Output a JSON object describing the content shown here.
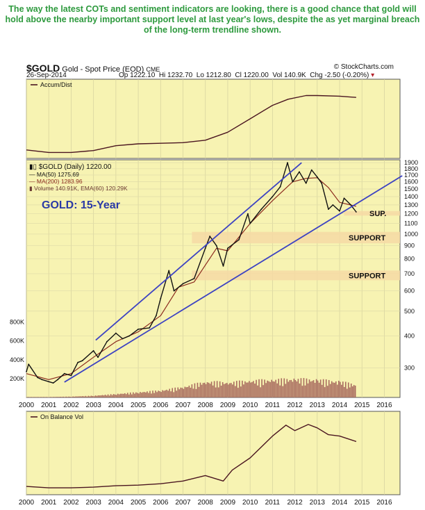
{
  "headline": "The way the latest COTs and sentiment indicators are looking, there is a good chance that gold will hold above the nearby important support level at last  year's lows, despite the as yet marginal breach of the long-term trendline shown.",
  "header": {
    "symbol": "$GOLD",
    "name": "Gold - Spot Price (EOD)",
    "exchange": "CME",
    "brand": "© StockCharts.com",
    "date": "26-Sep-2014",
    "open": "Op 1222.10",
    "high": "Hi 1232.70",
    "low": "Lo 1212.80",
    "close": "Cl 1220.00",
    "vol": "Vol 140.9K",
    "chg": "Chg -2.50 (-0.20%)"
  },
  "colors": {
    "panel_bg": "#f7f3b2",
    "price_line": "#111111",
    "indicator_line": "#4a1520",
    "ma200": "#8b2a1e",
    "volume": "#a86a5e",
    "trendline": "#3d43c2",
    "support_band": "#f6d9a5",
    "label_blue": "#2a3aa6",
    "headline": "#2e9a3e"
  },
  "chart_data": [
    {
      "type": "line",
      "panel": "top",
      "legend": [
        "Accum/Dist"
      ],
      "x": [
        2000.0,
        2001.0,
        2002.0,
        2003.0,
        2004.0,
        2005.0,
        2006.0,
        2007.0,
        2008.0,
        2009.0,
        2010.0,
        2011.0,
        2011.7,
        2012.5,
        2013.0,
        2014.0,
        2014.74
      ],
      "y": [
        0.07,
        0.03,
        0.03,
        0.06,
        0.14,
        0.17,
        0.18,
        0.19,
        0.23,
        0.36,
        0.58,
        0.8,
        0.9,
        0.96,
        0.96,
        0.95,
        0.93
      ]
    },
    {
      "type": "line",
      "panel": "main",
      "title": "$GOLD (Daily) 1220.00",
      "annotation": "GOLD: 15-Year",
      "legend": [
        {
          "name": "$GOLD (Daily) 1220.00"
        },
        {
          "name": "MA(50) 1275.69"
        },
        {
          "name": "MA(200) 1283.96"
        },
        {
          "name": "Volume 140.91K, EMA(60) 120.29K"
        }
      ],
      "y_scale": "log",
      "ylim": [
        230,
        1950
      ],
      "y_ticks": [
        300,
        400,
        500,
        600,
        700,
        800,
        900,
        1000,
        1100,
        1200,
        1300,
        1400,
        1500,
        1600,
        1700,
        1800,
        1900
      ],
      "x_ticks": [
        "2000",
        "2001",
        "2002",
        "2003",
        "2004",
        "2005",
        "2006",
        "2007",
        "2008",
        "2009",
        "2010",
        "2011",
        "2012",
        "2013",
        "2014",
        "2015",
        "2016"
      ],
      "series": [
        {
          "name": "$GOLD (Daily)",
          "x": [
            2000.0,
            2000.1,
            2000.5,
            2000.7,
            2001.0,
            2001.2,
            2001.4,
            2001.7,
            2002.0,
            2002.3,
            2002.5,
            2003.0,
            2003.2,
            2003.6,
            2004.0,
            2004.3,
            2004.6,
            2005.0,
            2005.5,
            2005.8,
            2006.0,
            2006.37,
            2006.6,
            2007.0,
            2007.5,
            2008.0,
            2008.2,
            2008.5,
            2008.8,
            2009.0,
            2009.5,
            2009.9,
            2010.0,
            2010.5,
            2011.0,
            2011.35,
            2011.67,
            2011.9,
            2012.2,
            2012.5,
            2012.75,
            2013.0,
            2013.2,
            2013.5,
            2013.7,
            2014.0,
            2014.2,
            2014.5,
            2014.74
          ],
          "y": [
            290,
            310,
            275,
            270,
            265,
            262,
            270,
            285,
            280,
            315,
            320,
            350,
            330,
            380,
            410,
            390,
            400,
            425,
            430,
            480,
            560,
            720,
            600,
            640,
            670,
            880,
            980,
            900,
            750,
            880,
            950,
            1200,
            1100,
            1250,
            1400,
            1530,
            1900,
            1600,
            1750,
            1580,
            1780,
            1670,
            1580,
            1250,
            1300,
            1230,
            1380,
            1300,
            1220
          ]
        },
        {
          "name": "MA(200)",
          "x": [
            2000.0,
            2001.0,
            2002.0,
            2003.0,
            2004.0,
            2005.0,
            2006.0,
            2006.8,
            2007.5,
            2008.5,
            2009.0,
            2010.0,
            2011.0,
            2011.9,
            2012.5,
            2013.0,
            2013.5,
            2014.0,
            2014.74
          ],
          "y": [
            285,
            270,
            285,
            330,
            380,
            415,
            480,
            620,
            650,
            880,
            860,
            1100,
            1350,
            1600,
            1650,
            1660,
            1520,
            1330,
            1284
          ]
        }
      ],
      "annotations": [
        {
          "text": "SUP.",
          "level": [
            1180,
            1230
          ]
        },
        {
          "text": "SUPPORT",
          "level": [
            920,
            1020
          ]
        },
        {
          "text": "SUPPORT",
          "level": [
            660,
            720
          ]
        }
      ],
      "trendlines": [
        {
          "x": [
            2001.7,
            2016.8
          ],
          "y": [
            264,
            1690
          ]
        },
        {
          "x": [
            2003.1,
            2012.3
          ],
          "y": [
            385,
            1900
          ]
        }
      ]
    },
    {
      "type": "bar",
      "panel": "volume",
      "y_ticks": [
        "200K",
        "400K",
        "600K",
        "800K"
      ],
      "ylim": [
        0,
        900
      ],
      "x": [
        2000.0,
        2001.0,
        2002.0,
        2003.0,
        2004.0,
        2005.0,
        2006.0,
        2007.0,
        2008.0,
        2009.0,
        2010.0,
        2011.0,
        2012.0,
        2013.0,
        2014.0,
        2014.74
      ],
      "values": [
        5,
        5,
        10,
        20,
        40,
        60,
        80,
        120,
        180,
        170,
        190,
        200,
        210,
        200,
        180,
        140
      ]
    },
    {
      "type": "line",
      "panel": "bottom",
      "legend": [
        "On Balance Vol"
      ],
      "x_ticks": [
        "2000",
        "2001",
        "2002",
        "2003",
        "2004",
        "2005",
        "2006",
        "2007",
        "2008",
        "2009",
        "2010",
        "2011",
        "2012",
        "2013",
        "2014",
        "2015",
        "2016"
      ],
      "x": [
        2000.0,
        2001.0,
        2002.0,
        2003.0,
        2004.0,
        2005.0,
        2006.0,
        2007.0,
        2008.0,
        2008.8,
        2009.2,
        2010.0,
        2011.0,
        2011.6,
        2012.0,
        2012.6,
        2013.0,
        2013.5,
        2014.0,
        2014.74
      ],
      "y": [
        0.06,
        0.04,
        0.04,
        0.05,
        0.07,
        0.08,
        0.1,
        0.14,
        0.22,
        0.14,
        0.3,
        0.48,
        0.8,
        0.96,
        0.88,
        0.97,
        0.92,
        0.82,
        0.8,
        0.72
      ]
    }
  ]
}
